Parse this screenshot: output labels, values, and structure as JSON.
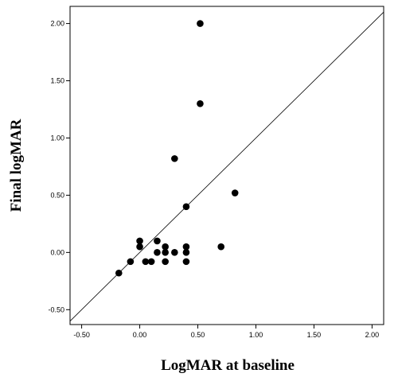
{
  "chart_data": {
    "type": "scatter",
    "title": "",
    "xlabel": "LogMAR at baseline",
    "ylabel": "Final logMAR",
    "xlim": [
      -0.6,
      2.1
    ],
    "ylim": [
      -0.63,
      2.15
    ],
    "x_ticks": [
      "-0.50",
      "0.00",
      "0.50",
      "1.00",
      "1.50",
      "2.00"
    ],
    "y_ticks": [
      "-0.50",
      "0.00",
      "0.50",
      "1.00",
      "1.50",
      "2.00"
    ],
    "reference_line": "y = x",
    "grid": false,
    "legend": "none",
    "marker_color": "#000000",
    "points": [
      {
        "x": 0.52,
        "y": 2.0
      },
      {
        "x": 0.52,
        "y": 1.3
      },
      {
        "x": 0.3,
        "y": 0.82
      },
      {
        "x": 0.82,
        "y": 0.52
      },
      {
        "x": 0.4,
        "y": 0.4
      },
      {
        "x": 0.0,
        "y": 0.1
      },
      {
        "x": 0.15,
        "y": 0.1
      },
      {
        "x": 0.0,
        "y": 0.05
      },
      {
        "x": 0.22,
        "y": 0.05
      },
      {
        "x": 0.4,
        "y": 0.05
      },
      {
        "x": 0.7,
        "y": 0.05
      },
      {
        "x": 0.15,
        "y": 0.0
      },
      {
        "x": 0.22,
        "y": 0.0
      },
      {
        "x": 0.3,
        "y": 0.0
      },
      {
        "x": 0.4,
        "y": 0.0
      },
      {
        "x": -0.08,
        "y": -0.08
      },
      {
        "x": 0.05,
        "y": -0.08
      },
      {
        "x": 0.1,
        "y": -0.08
      },
      {
        "x": 0.22,
        "y": -0.08
      },
      {
        "x": 0.4,
        "y": -0.08
      },
      {
        "x": -0.18,
        "y": -0.18
      }
    ]
  }
}
